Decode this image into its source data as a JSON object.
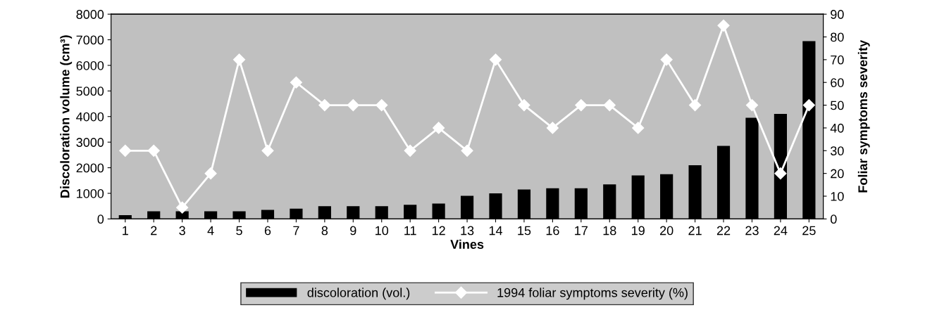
{
  "chart_data": {
    "type": "bar",
    "xlabel": "Vines",
    "ylabel": "Discoloration volume (cm³)",
    "y2label": "Foliar symptoms severity",
    "categories": [
      "1",
      "2",
      "3",
      "4",
      "5",
      "6",
      "7",
      "8",
      "9",
      "10",
      "11",
      "12",
      "13",
      "14",
      "15",
      "16",
      "17",
      "18",
      "19",
      "20",
      "21",
      "22",
      "23",
      "24",
      "25"
    ],
    "series": [
      {
        "name": "discoloration (vol.)",
        "color": "#000000",
        "values": [
          150,
          300,
          300,
          300,
          300,
          350,
          400,
          500,
          500,
          500,
          550,
          600,
          900,
          1000,
          1150,
          1200,
          1200,
          1350,
          1700,
          1750,
          2100,
          2850,
          3950,
          4100,
          6950
        ]
      },
      {
        "name": "1994 foliar symptoms severity (%)",
        "type": "line",
        "axis": "y2",
        "color": "#ffffff",
        "marker": "diamond",
        "values": [
          30,
          30,
          5,
          20,
          70,
          30,
          60,
          50,
          50,
          50,
          30,
          40,
          30,
          70,
          50,
          40,
          50,
          50,
          40,
          70,
          50,
          85,
          50,
          20,
          50
        ]
      }
    ],
    "ylim": [
      0,
      8000
    ],
    "yticks": [
      0,
      1000,
      2000,
      3000,
      4000,
      5000,
      6000,
      7000,
      8000
    ],
    "y2lim": [
      0,
      90
    ],
    "y2ticks": [
      0,
      10,
      20,
      30,
      40,
      50,
      60,
      70,
      80,
      90
    ],
    "legend": "bottom",
    "grid": false
  }
}
